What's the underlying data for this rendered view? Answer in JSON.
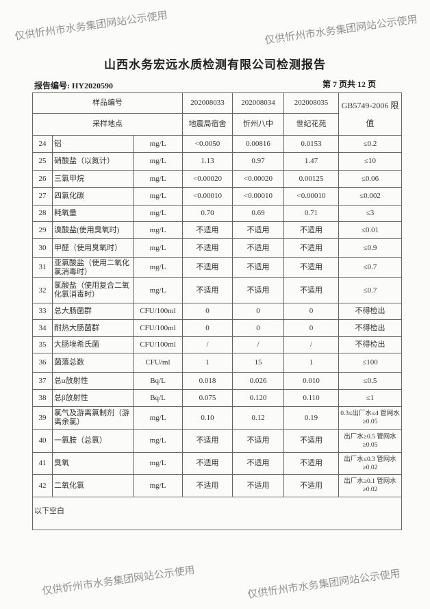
{
  "title": "山西水务宏远水质检测有限公司检测报告",
  "report_no": "报告编号: HY2020590",
  "page_info": "第 7 页共 12 页",
  "header": {
    "sample_no_label": "样品编号",
    "site_label": "采样地点",
    "samples": [
      "202008033",
      "202008034",
      "202008035"
    ],
    "sites": [
      "地震局宿舍",
      "忻州八中",
      "世纪花苑"
    ],
    "limit_label": "GB5749-2006 限值"
  },
  "rows": [
    {
      "no": "24",
      "item": "铝",
      "unit": "mg/L",
      "v": [
        "<0.0050",
        "0.00816",
        "0.0153"
      ],
      "limit": "≤0.2"
    },
    {
      "no": "25",
      "item": "硝酸盐（以氮计）",
      "unit": "mg/L",
      "v": [
        "1.13",
        "0.97",
        "1.47"
      ],
      "limit": "≤10"
    },
    {
      "no": "26",
      "item": "三氯甲烷",
      "unit": "mg/L",
      "v": [
        "<0.00020",
        "<0.00020",
        "0.00125"
      ],
      "limit": "≤0.06"
    },
    {
      "no": "27",
      "item": "四氯化碳",
      "unit": "mg/L",
      "v": [
        "<0.00010",
        "<0.00010",
        "<0.00010"
      ],
      "limit": "≤0.002"
    },
    {
      "no": "28",
      "item": "耗氧量",
      "unit": "mg/L",
      "v": [
        "0.70",
        "0.69",
        "0.71"
      ],
      "limit": "≤3"
    },
    {
      "no": "29",
      "item": "溴酸盐(使用臭氧时)",
      "unit": "mg/L",
      "v": [
        "不适用",
        "不适用",
        "不适用"
      ],
      "limit": "≤0.01"
    },
    {
      "no": "30",
      "item": "甲醛（使用臭氧时）",
      "unit": "mg/L",
      "v": [
        "不适用",
        "不适用",
        "不适用"
      ],
      "limit": "≤0.9"
    },
    {
      "no": "31",
      "item": "亚氯酸盐（使用二氧化氯消毒时）",
      "unit": "mg/L",
      "v": [
        "不适用",
        "不适用",
        "不适用"
      ],
      "limit": "≤0.7"
    },
    {
      "no": "32",
      "item": "氯酸盐（使用复合二氧化氯消毒时）",
      "unit": "mg/L",
      "v": [
        "不适用",
        "不适用",
        "不适用"
      ],
      "limit": "≤0.7"
    },
    {
      "no": "33",
      "item": "总大肠菌群",
      "unit": "CFU/100ml",
      "v": [
        "0",
        "0",
        "0"
      ],
      "limit": "不得检出"
    },
    {
      "no": "34",
      "item": "耐热大肠菌群",
      "unit": "CFU/100ml",
      "v": [
        "0",
        "0",
        "0"
      ],
      "limit": "不得检出"
    },
    {
      "no": "35",
      "item": "大肠埃希氏菌",
      "unit": "CFU/100ml",
      "v": [
        "/",
        "/",
        "/"
      ],
      "limit": "不得检出"
    },
    {
      "no": "36",
      "item": "菌落总数",
      "unit": "CFU/ml",
      "v": [
        "1",
        "15",
        "1"
      ],
      "limit": "≤100"
    },
    {
      "no": "37",
      "item": "总α放射性",
      "unit": "Bq/L",
      "v": [
        "0.018",
        "0.026",
        "0.010"
      ],
      "limit": "≤0.5"
    },
    {
      "no": "38",
      "item": "总β放射性",
      "unit": "Bq/L",
      "v": [
        "0.075",
        "0.120",
        "0.110"
      ],
      "limit": "≤1"
    },
    {
      "no": "39",
      "item": "氯气及游离氯制剂（游离余氯）",
      "unit": "mg/L",
      "v": [
        "0.10",
        "0.12",
        "0.19"
      ],
      "limit": "0.3≤出厂水≤4 管网水≥0.05"
    },
    {
      "no": "40",
      "item": "一氯胺（总氯）",
      "unit": "mg/L",
      "v": [
        "不适用",
        "不适用",
        "不适用"
      ],
      "limit": "出厂水≥0.5 管网水≥0.05"
    },
    {
      "no": "41",
      "item": "臭氧",
      "unit": "mg/L",
      "v": [
        "不适用",
        "不适用",
        "不适用"
      ],
      "limit": "出厂水≤0.3 管网水≥0.02"
    },
    {
      "no": "42",
      "item": "二氧化氯",
      "unit": "mg/L",
      "v": [
        "不适用",
        "不适用",
        "不适用"
      ],
      "limit": "出厂水≥0.1 管网水≥0.02"
    }
  ],
  "blank_note": "以下空白",
  "watermark": "仅供忻州市水务集团网站公示使用"
}
